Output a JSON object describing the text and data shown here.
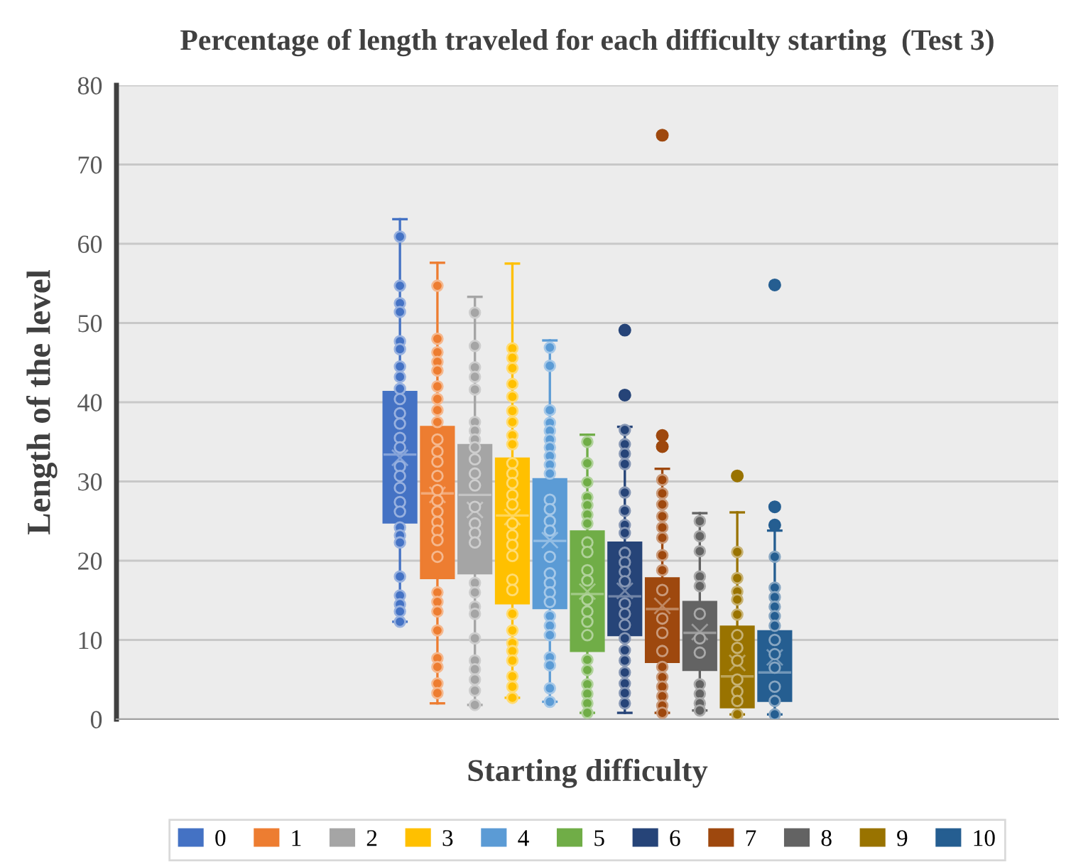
{
  "chart_data": {
    "type": "box",
    "title": "Percentage of length traveled for each difficulty starting  (Test 3)",
    "xlabel": "Starting difficulty",
    "ylabel": "Length of the level",
    "categories": [
      null
    ],
    "series": [
      {
        "name": "0",
        "color": "#4472c4",
        "boxes": [
          {
            "low": 12.3,
            "q1": 24.8,
            "median": 33.4,
            "q3": 41.3,
            "high": 63.1,
            "mean": 33.0
          }
        ]
      },
      {
        "name": "1",
        "color": "#ed7d31",
        "boxes": [
          {
            "low": 2.0,
            "q1": 17.8,
            "median": 28.5,
            "q3": 36.9,
            "high": 57.6,
            "mean": 28.3
          }
        ]
      },
      {
        "name": "2",
        "color": "#a5a5a5",
        "boxes": [
          {
            "low": 1.8,
            "q1": 18.4,
            "median": 28.3,
            "q3": 34.6,
            "high": 53.3,
            "mean": 26.4
          }
        ]
      },
      {
        "name": "3",
        "color": "#ffc000",
        "boxes": [
          {
            "low": 2.7,
            "q1": 14.6,
            "median": 25.7,
            "q3": 32.9,
            "high": 57.5,
            "mean": 25.5
          }
        ]
      },
      {
        "name": "4",
        "color": "#5b9bd5",
        "boxes": [
          {
            "low": 2.2,
            "q1": 14.0,
            "median": 22.5,
            "q3": 30.3,
            "high": 47.8,
            "mean": 22.6
          }
        ]
      },
      {
        "name": "5",
        "color": "#70ad47",
        "boxes": [
          {
            "low": 0.8,
            "q1": 8.6,
            "median": 15.8,
            "q3": 23.7,
            "high": 35.9,
            "mean": 16.1
          }
        ]
      },
      {
        "name": "6",
        "color": "#264478",
        "boxes": [
          {
            "low": 0.8,
            "q1": 10.6,
            "median": 15.5,
            "q3": 22.3,
            "high": 36.9,
            "mean": 16.2,
            "outliers": [
              49.1,
              40.9
            ]
          }
        ]
      },
      {
        "name": "7",
        "color": "#9e480e",
        "boxes": [
          {
            "low": 0.8,
            "q1": 7.2,
            "median": 13.9,
            "q3": 17.8,
            "high": 31.6,
            "mean": 14.3,
            "outliers": [
              73.7,
              35.8,
              34.4
            ]
          }
        ]
      },
      {
        "name": "8",
        "color": "#636363",
        "boxes": [
          {
            "low": 1.1,
            "q1": 6.2,
            "median": 10.9,
            "q3": 14.8,
            "high": 26.0,
            "mean": 11.0
          }
        ]
      },
      {
        "name": "9",
        "color": "#997300",
        "boxes": [
          {
            "low": 0.6,
            "q1": 1.5,
            "median": 5.4,
            "q3": 11.7,
            "high": 26.1,
            "mean": 7.1,
            "outliers": [
              30.7
            ]
          }
        ]
      },
      {
        "name": "10",
        "color": "#255e91",
        "boxes": [
          {
            "low": 0.6,
            "q1": 2.3,
            "median": 5.9,
            "q3": 11.1,
            "high": 23.8,
            "mean": 7.8,
            "outliers": [
              54.8,
              26.8,
              24.5
            ]
          }
        ]
      },
      {
        "type": "scatter",
        "color": "#4472c4",
        "x": [
          null,
          null,
          null,
          null,
          null,
          null,
          null,
          null,
          null,
          null,
          null,
          null,
          null,
          null,
          null,
          null,
          null,
          null,
          null,
          null,
          null,
          null,
          null,
          null,
          null,
          null,
          null
        ],
        "values": [
          60.9,
          54.7,
          52.5,
          51.4,
          47.7,
          46.7,
          44.5,
          43.2,
          41.7,
          40.4,
          38.6,
          37.3,
          35.5,
          34.3,
          31.9,
          30.7,
          29.2,
          27.4,
          26.2,
          24.2,
          23.2,
          22.3,
          18.0,
          15.6,
          14.5,
          13.6,
          12.3
        ]
      },
      {
        "type": "scatter",
        "color": "#ed7d31",
        "x": [
          null,
          null,
          null,
          null,
          null,
          null,
          null,
          null,
          null,
          null,
          null,
          null,
          null,
          null,
          null,
          null,
          null,
          null,
          null,
          null,
          null,
          null,
          null,
          null,
          null,
          null,
          null,
          null
        ],
        "values": [
          54.7,
          48.0,
          46.3,
          45.1,
          44.0,
          42.0,
          40.4,
          39.0,
          37.5,
          35.3,
          33.8,
          32.5,
          30.7,
          28.9,
          27.6,
          26.2,
          24.9,
          23.8,
          22.6,
          20.5,
          16.0,
          14.8,
          13.6,
          11.2,
          7.7,
          6.6,
          4.5,
          3.3
        ]
      },
      {
        "type": "scatter",
        "color": "#a5a5a5",
        "x": [
          null,
          null,
          null,
          null,
          null,
          null,
          null,
          null,
          null,
          null,
          null,
          null,
          null,
          null,
          null,
          null,
          null,
          null,
          null,
          null,
          null,
          null,
          null,
          null,
          null,
          null
        ],
        "values": [
          51.3,
          47.1,
          44.4,
          43.2,
          41.6,
          37.5,
          36.4,
          35.3,
          34.3,
          32.8,
          31.0,
          29.5,
          26.8,
          24.7,
          23.5,
          22.3,
          17.2,
          16.0,
          14.2,
          13.3,
          10.2,
          7.4,
          6.3,
          5.0,
          3.6,
          1.8
        ]
      },
      {
        "type": "scatter",
        "color": "#ffc000",
        "x": [
          null,
          null,
          null,
          null,
          null,
          null,
          null,
          null,
          null,
          null,
          null,
          null,
          null,
          null,
          null,
          null,
          null,
          null,
          null,
          null,
          null,
          null,
          null,
          null,
          null,
          null,
          null,
          null
        ],
        "values": [
          46.8,
          45.6,
          44.3,
          42.3,
          40.7,
          38.9,
          37.5,
          35.8,
          34.7,
          32.3,
          31.0,
          29.8,
          28.3,
          27.1,
          24.7,
          23.2,
          22.0,
          20.6,
          17.6,
          16.3,
          13.3,
          11.2,
          9.6,
          8.6,
          7.4,
          5.4,
          4.1,
          2.7
        ]
      },
      {
        "type": "scatter",
        "color": "#5b9bd5",
        "x": [
          null,
          null,
          null,
          null,
          null,
          null,
          null,
          null,
          null,
          null,
          null,
          null,
          null,
          null,
          null,
          null,
          null,
          null,
          null,
          null,
          null,
          null,
          null,
          null,
          null,
          null
        ],
        "values": [
          46.9,
          44.6,
          39.0,
          37.4,
          36.4,
          35.3,
          34.3,
          33.2,
          32.1,
          31.0,
          27.7,
          26.5,
          25.0,
          23.8,
          20.5,
          18.4,
          17.2,
          16.0,
          14.8,
          13.0,
          11.8,
          10.6,
          7.8,
          6.8,
          3.9,
          2.2
        ]
      },
      {
        "type": "scatter",
        "color": "#70ad47",
        "x": [
          null,
          null,
          null,
          null,
          null,
          null,
          null,
          null,
          null,
          null,
          null,
          null,
          null,
          null,
          null,
          null,
          null,
          null,
          null,
          null,
          null
        ],
        "values": [
          35.0,
          32.3,
          29.9,
          28.0,
          27.0,
          25.8,
          24.7,
          22.3,
          21.1,
          18.8,
          17.5,
          15.1,
          13.6,
          12.3,
          10.6,
          7.5,
          6.2,
          4.4,
          3.2,
          2.0,
          0.8
        ]
      },
      {
        "type": "scatter",
        "color": "#264478",
        "x": [
          null,
          null,
          null,
          null,
          null,
          null,
          null,
          null,
          null,
          null,
          null,
          null,
          null,
          null,
          null,
          null,
          null,
          null,
          null,
          null,
          null,
          null
        ],
        "values": [
          36.5,
          34.7,
          33.5,
          32.2,
          28.6,
          26.3,
          24.5,
          23.5,
          21.0,
          19.8,
          18.6,
          17.4,
          14.6,
          13.3,
          11.9,
          10.2,
          8.7,
          7.4,
          5.9,
          4.5,
          3.3,
          2.0
        ]
      },
      {
        "type": "scatter",
        "color": "#9e480e",
        "x": [
          null,
          null,
          null,
          null,
          null,
          null,
          null,
          null,
          null,
          null,
          null,
          null,
          null,
          null,
          null,
          null,
          null,
          null
        ],
        "values": [
          30.2,
          28.5,
          27.1,
          25.6,
          24.2,
          22.9,
          20.7,
          18.8,
          16.3,
          12.7,
          10.9,
          8.6,
          6.6,
          5.3,
          4.1,
          2.9,
          1.7,
          0.8
        ]
      },
      {
        "type": "scatter",
        "color": "#636363",
        "x": [
          null,
          null,
          null,
          null,
          null,
          null,
          null,
          null,
          null,
          null,
          null,
          null
        ],
        "values": [
          25.0,
          23.1,
          21.2,
          18.0,
          16.8,
          13.3,
          10.2,
          8.4,
          4.4,
          3.2,
          2.0,
          1.1
        ]
      },
      {
        "type": "scatter",
        "color": "#997300",
        "x": [
          null,
          null,
          null,
          null,
          null,
          null,
          null,
          null,
          null,
          null,
          null,
          null
        ],
        "values": [
          21.1,
          17.8,
          16.1,
          15.1,
          13.2,
          10.6,
          9.0,
          7.4,
          5.0,
          3.5,
          2.3,
          0.6
        ]
      },
      {
        "type": "scatter",
        "color": "#255e91",
        "x": [
          null,
          null,
          null,
          null,
          null,
          null,
          null,
          null,
          null,
          null,
          null,
          null
        ],
        "values": [
          20.5,
          16.6,
          15.4,
          14.2,
          13.0,
          11.8,
          10.0,
          8.2,
          6.5,
          4.1,
          2.3,
          0.6
        ]
      }
    ],
    "ylim": [
      0,
      80
    ],
    "yticks": [
      0,
      10,
      20,
      30,
      40,
      50,
      60,
      70,
      80
    ],
    "grid": "y",
    "legend": "bottom",
    "tick_labels": "y"
  }
}
